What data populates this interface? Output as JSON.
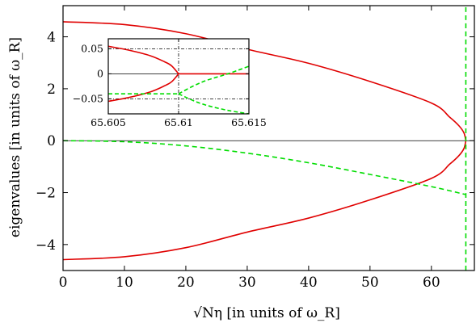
{
  "chart_data": [
    {
      "type": "line",
      "role": "main",
      "xlabel": "√Nη [in units of ω_R]",
      "ylabel": "eigenvalues [in units of ω_R]",
      "xlim": [
        0,
        67
      ],
      "ylim": [
        -5,
        5.2
      ],
      "x_ticks": [
        0,
        10,
        20,
        30,
        40,
        50,
        60
      ],
      "y_ticks": [
        -4,
        -2,
        0,
        2,
        4
      ],
      "grid": false,
      "reference_lines": [
        {
          "orientation": "horizontal",
          "y": 0,
          "color": "#000000"
        }
      ],
      "series": [
        {
          "style": "solid",
          "color": "#e00000",
          "x": [
            0,
            10,
            20,
            30,
            40,
            50,
            60,
            63,
            64.5,
            65.3,
            65.61
          ],
          "y": [
            4.58,
            4.47,
            4.12,
            3.52,
            2.98,
            2.28,
            1.45,
            0.9,
            0.57,
            0.3,
            0
          ]
        },
        {
          "style": "solid",
          "color": "#e00000",
          "x": [
            0,
            10,
            20,
            30,
            40,
            50,
            60,
            63,
            64.5,
            65.3,
            65.61
          ],
          "y": [
            -4.58,
            -4.47,
            -4.12,
            -3.52,
            -2.98,
            -2.28,
            -1.45,
            -0.9,
            -0.57,
            -0.3,
            0
          ]
        },
        {
          "style": "dashed",
          "color": "#00dd00",
          "x": [
            0,
            10,
            20,
            30,
            40,
            50,
            60,
            65.5
          ],
          "y": [
            0,
            -0.04,
            -0.2,
            -0.48,
            -0.85,
            -1.3,
            -1.77,
            -2.07
          ]
        },
        {
          "style": "dashed",
          "color": "#00dd00",
          "x": [
            65.61,
            65.61
          ],
          "y": [
            -5,
            5.2
          ]
        }
      ]
    },
    {
      "type": "line",
      "role": "inset",
      "xlim": [
        65.605,
        65.615
      ],
      "ylim": [
        -0.08,
        0.07
      ],
      "x_ticks": [
        65.605,
        65.61,
        65.615
      ],
      "y_ticks": [
        -0.05,
        0,
        0.05
      ],
      "reference_lines": [
        {
          "orientation": "horizontal",
          "y": 0.05,
          "style": "dash-dot"
        },
        {
          "orientation": "horizontal",
          "y": -0.05,
          "style": "dash-dot"
        },
        {
          "orientation": "vertical",
          "x": 65.61,
          "style": "dash-dot"
        },
        {
          "orientation": "horizontal",
          "y": 0,
          "style": "solid"
        }
      ],
      "series": [
        {
          "style": "solid",
          "color": "#e00000",
          "x": [
            65.605,
            65.6065,
            65.608,
            65.609,
            65.6095,
            65.61
          ],
          "y": [
            0.055,
            0.047,
            0.036,
            0.024,
            0.016,
            0
          ]
        },
        {
          "style": "solid",
          "color": "#e00000",
          "x": [
            65.605,
            65.6065,
            65.608,
            65.609,
            65.6095,
            65.61
          ],
          "y": [
            -0.055,
            -0.047,
            -0.036,
            -0.024,
            -0.016,
            0
          ]
        },
        {
          "style": "solid",
          "color": "#e00000",
          "x": [
            65.61,
            65.615
          ],
          "y": [
            0,
            0
          ]
        },
        {
          "style": "dashed",
          "color": "#00dd00",
          "x": [
            65.605,
            65.6085,
            65.61
          ],
          "y": [
            -0.04,
            -0.04,
            -0.04
          ]
        },
        {
          "style": "dashed",
          "color": "#00dd00",
          "x": [
            65.61,
            65.611,
            65.612,
            65.6135,
            65.615
          ],
          "y": [
            -0.04,
            -0.025,
            -0.013,
            0.0,
            0.015
          ]
        },
        {
          "style": "dashed",
          "color": "#00dd00",
          "x": [
            65.61,
            65.611,
            65.612,
            65.6135,
            65.615
          ],
          "y": [
            -0.04,
            -0.053,
            -0.063,
            -0.073,
            -0.08
          ]
        }
      ]
    }
  ]
}
